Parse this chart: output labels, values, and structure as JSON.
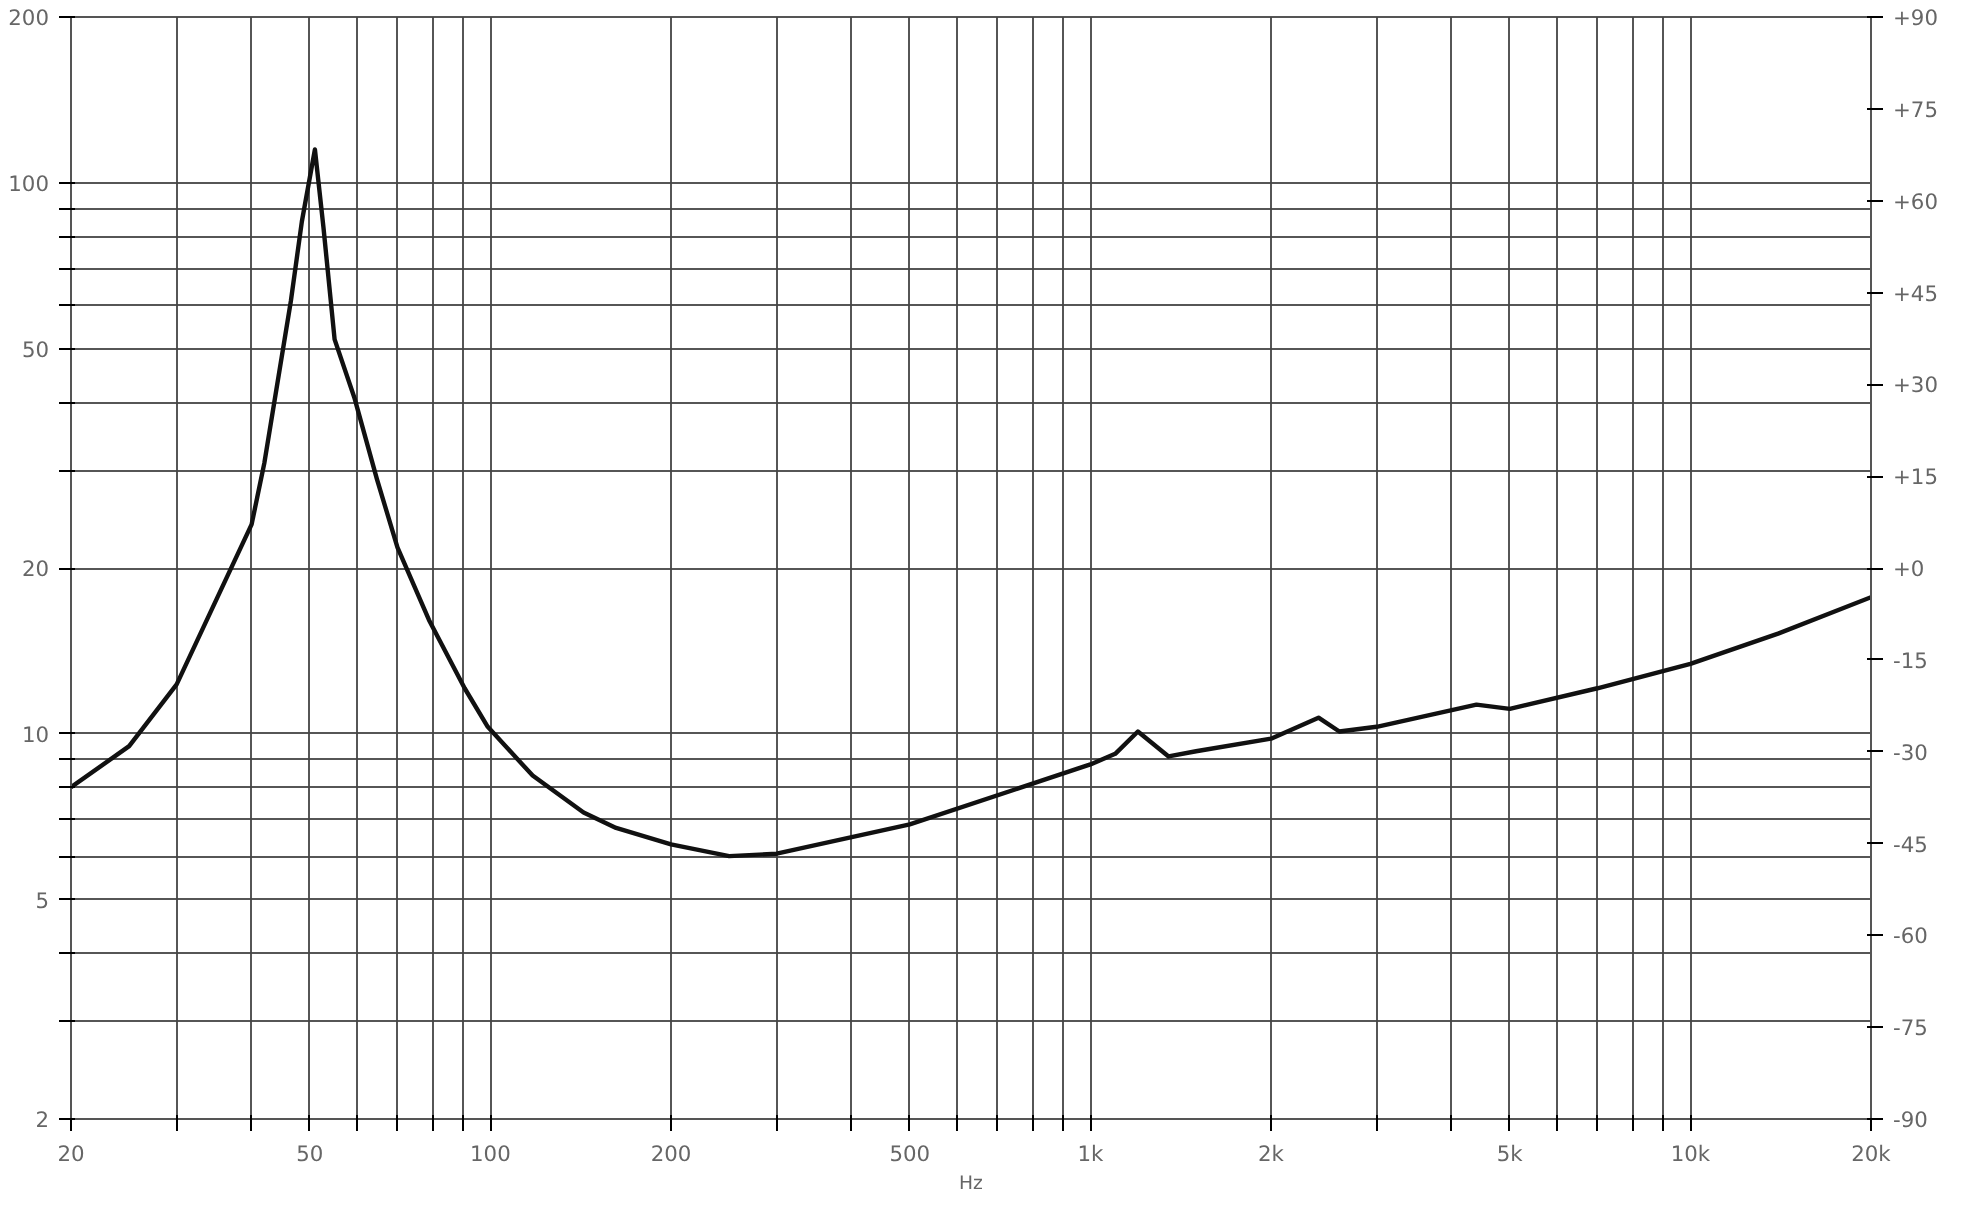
{
  "chart_data": {
    "type": "line",
    "xlabel": "Hz",
    "log": "xy",
    "grid": true,
    "marker": "none",
    "line_style": "solid",
    "xlim": [
      20,
      20000
    ],
    "ylim": [
      2,
      200
    ],
    "y2lim": [
      -90,
      90
    ],
    "xticks": [
      20,
      {
        "value": 30,
        "label": null
      },
      {
        "value": 40,
        "label": null
      },
      50,
      {
        "value": 60,
        "label": null
      },
      {
        "value": 70,
        "label": null
      },
      {
        "value": 80,
        "label": null
      },
      {
        "value": 90,
        "label": null
      },
      100,
      200,
      {
        "value": 300,
        "label": null
      },
      {
        "value": 400,
        "label": null
      },
      500,
      {
        "value": 600,
        "label": null
      },
      {
        "value": 700,
        "label": null
      },
      {
        "value": 800,
        "label": null
      },
      {
        "value": 900,
        "label": null
      },
      {
        "value": 1000,
        "label": "1k"
      },
      {
        "value": 2000,
        "label": "2k"
      },
      {
        "value": 3000,
        "label": null
      },
      {
        "value": 4000,
        "label": null
      },
      {
        "value": 5000,
        "label": "5k"
      },
      {
        "value": 6000,
        "label": null
      },
      {
        "value": 7000,
        "label": null
      },
      {
        "value": 8000,
        "label": null
      },
      {
        "value": 9000,
        "label": null
      },
      {
        "value": 10000,
        "label": "10k"
      },
      {
        "value": 20000,
        "label": "20k"
      }
    ],
    "yticks": [
      2,
      {
        "value": 3,
        "label": null
      },
      {
        "value": 4,
        "label": null
      },
      5,
      {
        "value": 6,
        "label": null
      },
      {
        "value": 7,
        "label": null
      },
      {
        "value": 8,
        "label": null
      },
      {
        "value": 9,
        "label": null
      },
      10,
      20,
      {
        "value": 30,
        "label": null
      },
      {
        "value": 40,
        "label": null
      },
      50,
      {
        "value": 60,
        "label": null
      },
      {
        "value": 70,
        "label": null
      },
      {
        "value": 80,
        "label": null
      },
      {
        "value": 90,
        "label": null
      },
      100,
      200
    ],
    "y2ticks": [
      {
        "value": 90,
        "label": "+90"
      },
      {
        "value": 75,
        "label": "+75"
      },
      {
        "value": 60,
        "label": "+60"
      },
      {
        "value": 45,
        "label": "+45"
      },
      {
        "value": 30,
        "label": "+30"
      },
      {
        "value": 15,
        "label": "+15"
      },
      {
        "value": 0,
        "label": "+0"
      },
      -15,
      -30,
      -45,
      -60,
      -75,
      -90
    ],
    "series": [
      {
        "color": "#111111",
        "x": [
          20,
          25,
          30,
          35,
          40,
          42,
          46.5,
          48.5,
          51,
          52.7,
          55,
          59.4,
          64.7,
          70,
          79,
          90.6,
          99,
          117.6,
          143,
          162,
          200,
          250,
          300,
          500,
          1000,
          1100,
          1200,
          1350,
          1500,
          2000,
          2400,
          2600,
          3000,
          4400,
          5000,
          7000,
          10000,
          14000,
          20000
        ],
        "values": [
          8.0,
          9.5,
          12.3,
          17.6,
          24,
          31,
          61,
          85,
          115,
          83,
          52,
          40.6,
          29,
          21.8,
          16.1,
          12.1,
          10.3,
          8.4,
          7.2,
          6.75,
          6.3,
          6.0,
          6.06,
          6.85,
          8.8,
          9.2,
          10.1,
          9.1,
          9.3,
          9.8,
          10.7,
          10.1,
          10.3,
          11.3,
          11.1,
          12.1,
          13.4,
          15.2,
          17.7
        ]
      }
    ]
  }
}
